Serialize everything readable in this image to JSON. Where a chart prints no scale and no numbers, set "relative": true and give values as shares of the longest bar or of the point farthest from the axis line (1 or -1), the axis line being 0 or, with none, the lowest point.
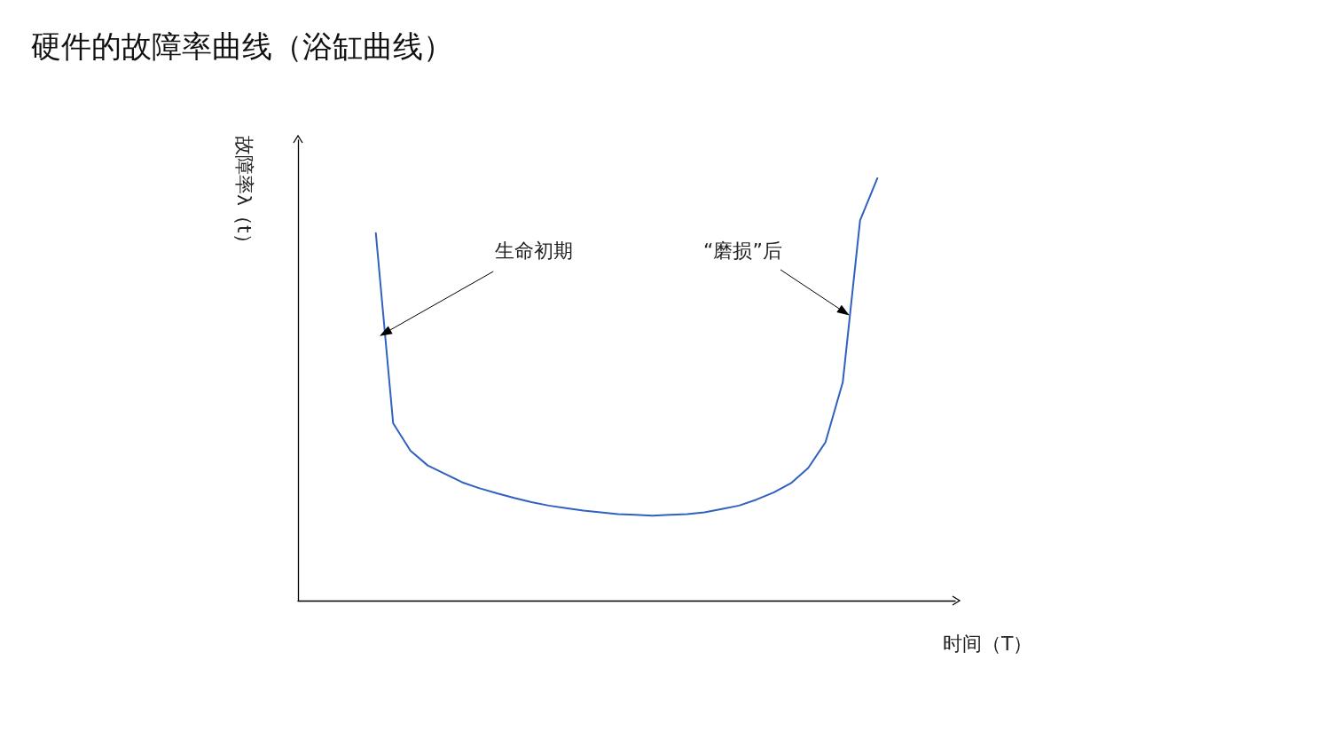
{
  "chart_data": {
    "type": "line",
    "title": "硬件的故障率曲线（浴缸曲线）",
    "xlabel": "时间（T）",
    "ylabel": "故障率λ（t）",
    "relative": true,
    "grid": false,
    "marker": "none",
    "line_style": "solid",
    "categories": [
      null,
      null,
      null,
      null,
      null,
      null,
      null,
      null,
      null,
      null,
      null,
      null,
      null,
      null,
      null,
      null,
      null,
      null,
      null,
      null,
      null,
      null,
      null,
      null,
      null,
      null,
      null,
      null,
      null,
      null,
      null,
      null,
      null,
      null,
      null,
      null,
      null,
      null
    ],
    "series": [
      {
        "color": "#3060c0",
        "values": [
          null,
          null,
          null,
          null,
          0.87,
          0.42,
          0.355,
          0.32,
          0.3,
          0.28,
          0.266,
          0.254,
          0.243,
          0.233,
          0.225,
          0.219,
          0.213,
          0.209,
          0.205,
          0.203,
          0.201,
          0.203,
          0.205,
          0.209,
          0.217,
          0.225,
          0.239,
          0.256,
          0.278,
          0.314,
          0.375,
          0.517,
          0.9,
          1.0,
          null,
          null,
          null,
          null
        ]
      }
    ],
    "annotations": [
      "生命初期",
      "“磨损”后"
    ]
  }
}
